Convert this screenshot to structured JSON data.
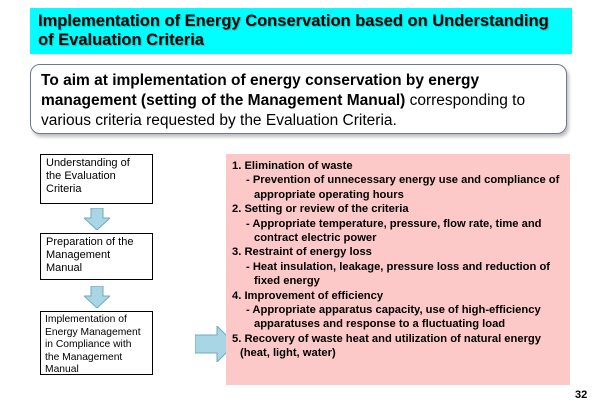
{
  "slide": {
    "title": "Implementation of Energy Conservation based on Understanding of Evaluation Criteria",
    "aim": {
      "bold_text": "To aim at implementation of energy conservation by energy management (setting of the Management Manual)",
      "normal_text": " corresponding to various criteria requested by the Evaluation Criteria."
    },
    "flow": {
      "step1": "Understanding of the Evaluation Criteria",
      "step2": "Preparation of the Management Manual",
      "step3": "Implementation of Energy Management in Compliance with the Management Manual"
    },
    "criteria": {
      "item1": "1. Elimination of waste",
      "item1_sub": "- Prevention of unnecessary energy use and compliance of appropriate operating hours",
      "item2": "2. Setting or review of the criteria",
      "item2_sub": "- Appropriate temperature, pressure, flow rate, time and contract electric power",
      "item3": "3. Restraint of energy loss",
      "item3_sub": "- Heat insulation, leakage, pressure loss and reduction of fixed energy",
      "item4": "4. Improvement of efficiency",
      "item4_sub": "- Appropriate apparatus capacity, use of high-efficiency apparatuses and response to a fluctuating load",
      "item5": "5. Recovery of waste heat and utilization of natural energy (heat, light, water)"
    },
    "page_number": "32",
    "colors": {
      "title_background": "#00ffff",
      "criteria_background": "#fcc9c8",
      "arrow_fill": "#a9d6e5"
    }
  }
}
